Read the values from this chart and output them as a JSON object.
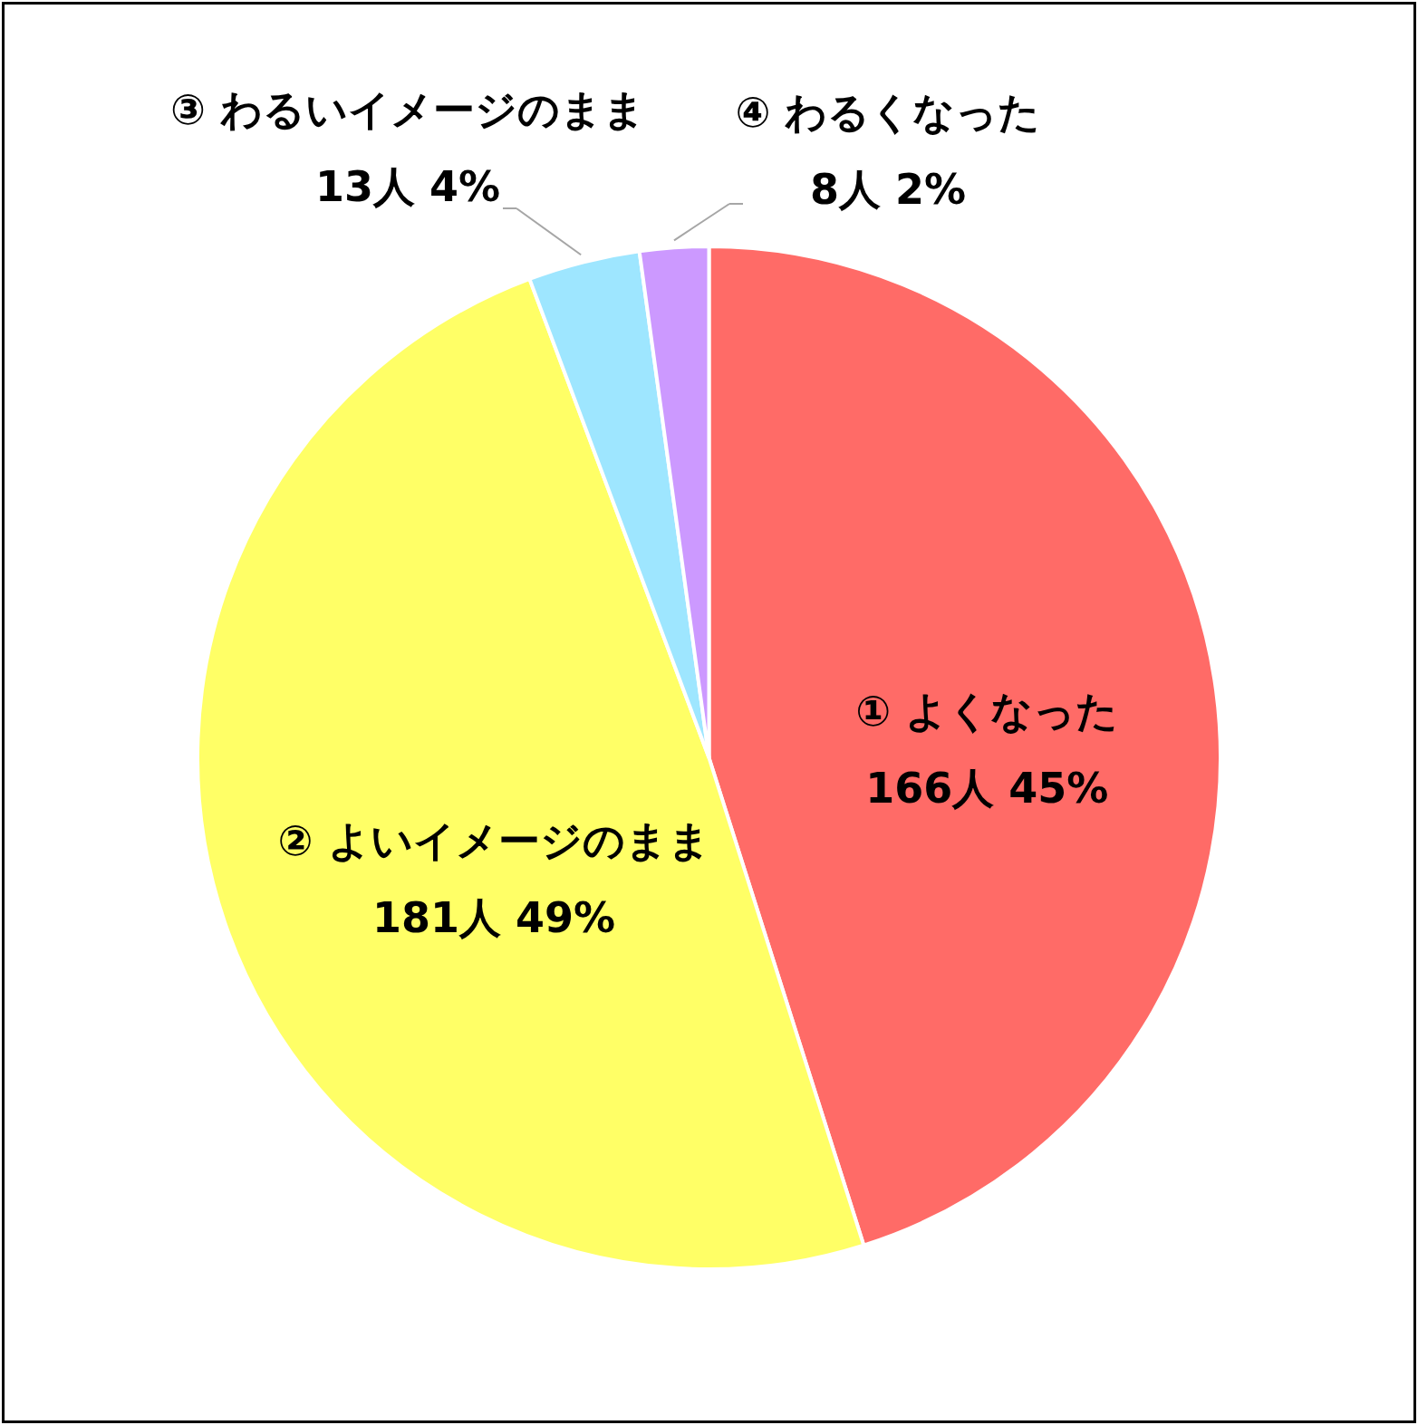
{
  "chart_data": {
    "type": "pie",
    "categories": [
      "① よくなった",
      "② よいイメージのまま",
      "③ わるいイメージのまま",
      "④ わるくなった"
    ],
    "values": [
      166,
      181,
      13,
      8
    ],
    "colors": [
      "#ff6b67",
      "#ffff66",
      "#9ee6ff",
      "#cc99ff"
    ],
    "value_labels": [
      "166人 45%",
      "181人 49%",
      "13人 4%",
      "8人 2%"
    ],
    "legend": false
  }
}
